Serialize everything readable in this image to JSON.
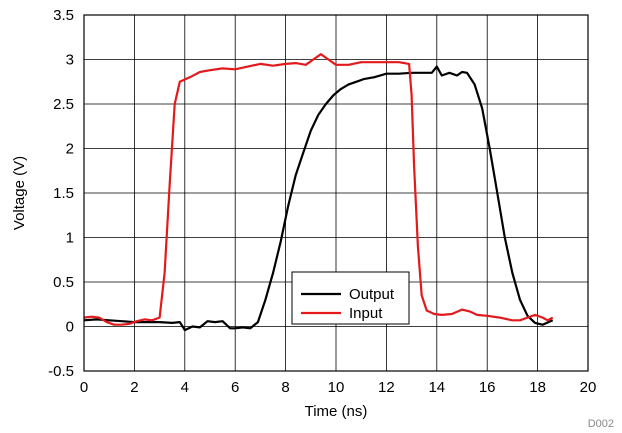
{
  "chart_data": {
    "type": "line",
    "title": "",
    "xlabel": "Time (ns)",
    "ylabel": "Voltage (V)",
    "xlim": [
      0,
      20
    ],
    "ylim": [
      -0.5,
      3.5
    ],
    "xticks": [
      0,
      2,
      4,
      6,
      8,
      10,
      12,
      14,
      16,
      18,
      20
    ],
    "yticks": [
      -0.5,
      0,
      0.5,
      1,
      1.5,
      2,
      2.5,
      3,
      3.5
    ],
    "ytick_labels": [
      "-0.5",
      "0",
      "0.5",
      "1",
      "1.5",
      "2",
      "2.5",
      "3",
      "3.5"
    ],
    "grid": true,
    "legend_position": "bottom-center",
    "series": [
      {
        "name": "Output",
        "color": "#000000",
        "points": [
          [
            0.0,
            0.07
          ],
          [
            0.5,
            0.08
          ],
          [
            1.0,
            0.07
          ],
          [
            1.5,
            0.06
          ],
          [
            2.0,
            0.05
          ],
          [
            2.5,
            0.05
          ],
          [
            3.0,
            0.05
          ],
          [
            3.5,
            0.04
          ],
          [
            3.8,
            0.05
          ],
          [
            4.0,
            -0.04
          ],
          [
            4.3,
            0.0
          ],
          [
            4.6,
            -0.01
          ],
          [
            4.9,
            0.06
          ],
          [
            5.2,
            0.05
          ],
          [
            5.5,
            0.06
          ],
          [
            5.8,
            -0.02
          ],
          [
            6.0,
            -0.02
          ],
          [
            6.3,
            -0.01
          ],
          [
            6.6,
            -0.02
          ],
          [
            6.9,
            0.05
          ],
          [
            7.2,
            0.3
          ],
          [
            7.5,
            0.6
          ],
          [
            7.8,
            0.95
          ],
          [
            8.1,
            1.35
          ],
          [
            8.4,
            1.7
          ],
          [
            8.7,
            1.95
          ],
          [
            9.0,
            2.2
          ],
          [
            9.3,
            2.38
          ],
          [
            9.6,
            2.5
          ],
          [
            9.9,
            2.6
          ],
          [
            10.2,
            2.67
          ],
          [
            10.5,
            2.72
          ],
          [
            10.8,
            2.75
          ],
          [
            11.1,
            2.78
          ],
          [
            11.5,
            2.8
          ],
          [
            12.0,
            2.84
          ],
          [
            12.5,
            2.84
          ],
          [
            13.0,
            2.85
          ],
          [
            13.5,
            2.85
          ],
          [
            13.8,
            2.85
          ],
          [
            14.0,
            2.92
          ],
          [
            14.2,
            2.82
          ],
          [
            14.5,
            2.85
          ],
          [
            14.8,
            2.82
          ],
          [
            15.0,
            2.86
          ],
          [
            15.2,
            2.85
          ],
          [
            15.5,
            2.72
          ],
          [
            15.8,
            2.45
          ],
          [
            16.1,
            2.0
          ],
          [
            16.4,
            1.5
          ],
          [
            16.7,
            1.0
          ],
          [
            17.0,
            0.6
          ],
          [
            17.3,
            0.3
          ],
          [
            17.6,
            0.12
          ],
          [
            17.9,
            0.04
          ],
          [
            18.2,
            0.02
          ],
          [
            18.6,
            0.07
          ]
        ]
      },
      {
        "name": "Input",
        "color": "#e31a1c",
        "points": [
          [
            0.0,
            0.1
          ],
          [
            0.3,
            0.11
          ],
          [
            0.6,
            0.1
          ],
          [
            0.9,
            0.05
          ],
          [
            1.2,
            0.02
          ],
          [
            1.5,
            0.02
          ],
          [
            1.8,
            0.03
          ],
          [
            2.1,
            0.06
          ],
          [
            2.4,
            0.08
          ],
          [
            2.7,
            0.07
          ],
          [
            3.0,
            0.1
          ],
          [
            3.2,
            0.6
          ],
          [
            3.4,
            1.6
          ],
          [
            3.6,
            2.5
          ],
          [
            3.8,
            2.75
          ],
          [
            4.2,
            2.8
          ],
          [
            4.6,
            2.86
          ],
          [
            5.0,
            2.88
          ],
          [
            5.5,
            2.9
          ],
          [
            6.0,
            2.89
          ],
          [
            6.5,
            2.92
          ],
          [
            7.0,
            2.95
          ],
          [
            7.5,
            2.93
          ],
          [
            8.0,
            2.95
          ],
          [
            8.4,
            2.96
          ],
          [
            8.8,
            2.94
          ],
          [
            9.1,
            3.0
          ],
          [
            9.4,
            3.06
          ],
          [
            9.7,
            3.0
          ],
          [
            10.0,
            2.94
          ],
          [
            10.5,
            2.94
          ],
          [
            11.0,
            2.97
          ],
          [
            11.5,
            2.97
          ],
          [
            12.0,
            2.97
          ],
          [
            12.5,
            2.97
          ],
          [
            12.9,
            2.95
          ],
          [
            13.0,
            2.6
          ],
          [
            13.1,
            1.8
          ],
          [
            13.25,
            0.9
          ],
          [
            13.4,
            0.35
          ],
          [
            13.6,
            0.18
          ],
          [
            13.9,
            0.14
          ],
          [
            14.2,
            0.13
          ],
          [
            14.6,
            0.14
          ],
          [
            15.0,
            0.19
          ],
          [
            15.3,
            0.17
          ],
          [
            15.6,
            0.13
          ],
          [
            16.0,
            0.12
          ],
          [
            16.5,
            0.1
          ],
          [
            17.0,
            0.07
          ],
          [
            17.3,
            0.07
          ],
          [
            17.6,
            0.1
          ],
          [
            17.9,
            0.13
          ],
          [
            18.2,
            0.1
          ],
          [
            18.4,
            0.07
          ],
          [
            18.6,
            0.1
          ]
        ]
      }
    ],
    "annotation": "D002"
  }
}
